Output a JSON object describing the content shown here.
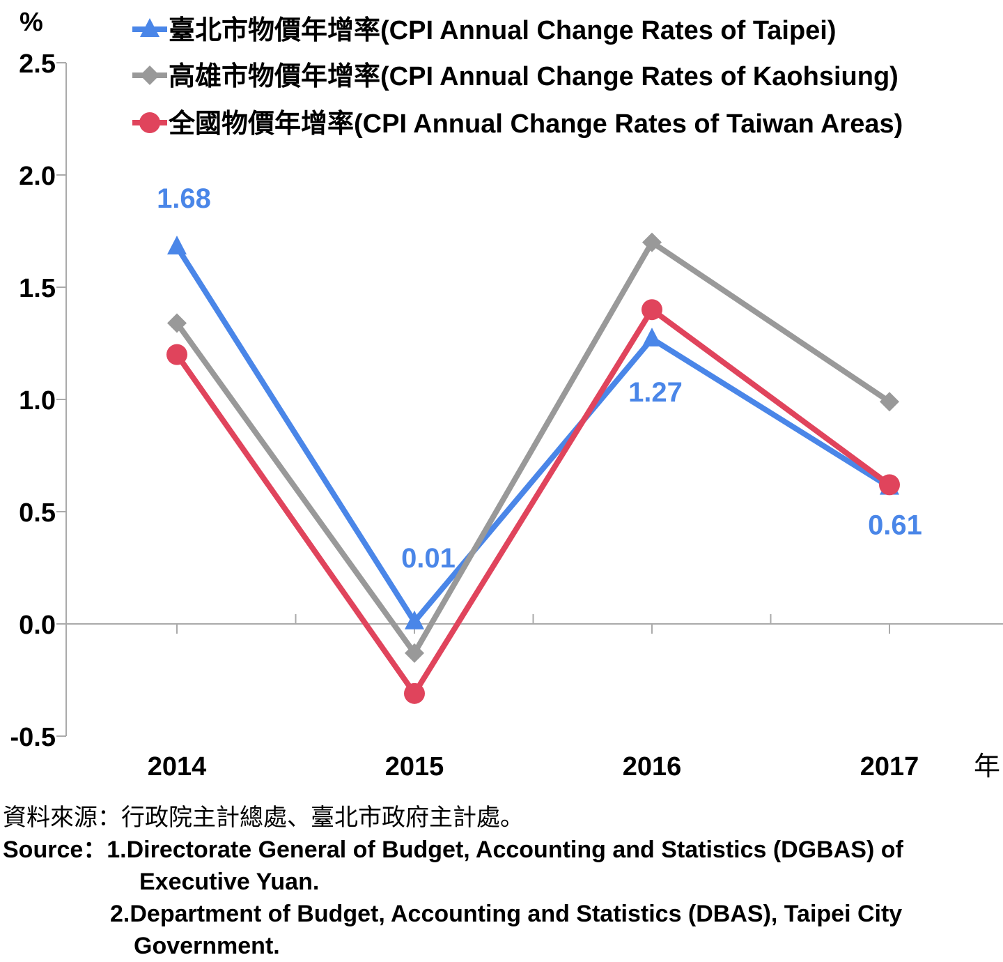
{
  "chart_data": {
    "type": "line",
    "y_unit": "%",
    "x_unit": "年",
    "categories": [
      "2014",
      "2015",
      "2016",
      "2017"
    ],
    "ylim": [
      -0.5,
      2.5
    ],
    "yticks": [
      "2.5",
      "2.0",
      "1.5",
      "1.0",
      "0.5",
      "0.0",
      "-0.5"
    ],
    "series": [
      {
        "name": "臺北市物價年增率(CPI Annual Change Rates of Taipei)",
        "color": "#4a86e8",
        "marker": "triangle",
        "values": [
          1.68,
          0.01,
          1.27,
          0.61
        ],
        "labels": [
          "1.68",
          "0.01",
          "1.27",
          "0.61"
        ]
      },
      {
        "name": "高雄市物價年增率(CPI Annual Change Rates of Kaohsiung)",
        "color": "#999999",
        "marker": "diamond",
        "values": [
          1.34,
          -0.13,
          1.7,
          0.99
        ]
      },
      {
        "name": "全國物價年增率(CPI Annual Change Rates of Taiwan Areas)",
        "color": "#e0445c",
        "marker": "circle",
        "values": [
          1.2,
          -0.31,
          1.4,
          0.62
        ]
      }
    ]
  },
  "source": {
    "zh": "資料來源：行政院主計總處、臺北市政府主計處。",
    "label": "Source：",
    "item1_a": "1.Directorate General of Budget, Accounting and Statistics (DGBAS) of",
    "item1_b": "Executive Yuan.",
    "item2_a": "2.Department of Budget, Accounting and Statistics (DBAS), Taipei City",
    "item2_b": "Government."
  }
}
